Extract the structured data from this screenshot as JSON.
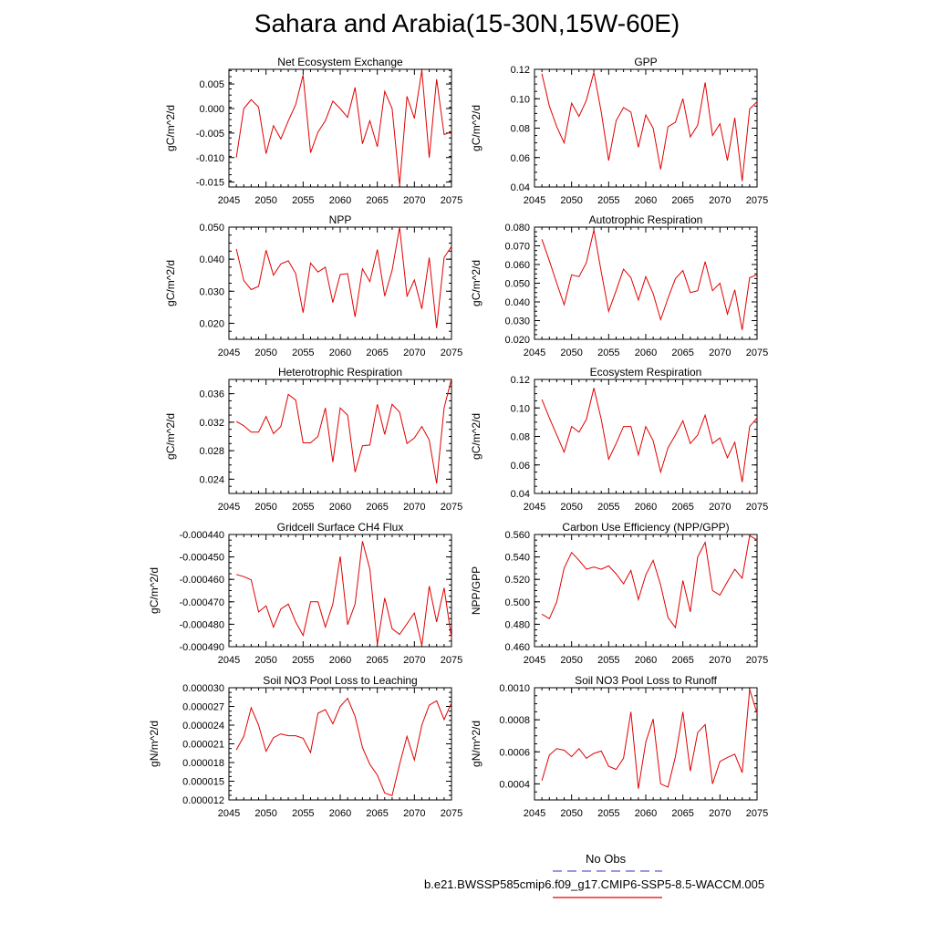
{
  "title": "Sahara and Arabia(15-30N,15W-60E)",
  "legend": [
    {
      "label": "No Obs",
      "color": "#5a5ad6",
      "dash": true
    },
    {
      "label": "b.e21.BWSSP585cmip6.f09_g17.CMIP6-SSP5-8.5-WACCM.005",
      "color": "#e00000",
      "dash": false
    }
  ],
  "chart_data": [
    {
      "type": "line",
      "title": "Net Ecosystem Exchange",
      "ylabel": "gC/m^2/d",
      "xlim": [
        2045,
        2075
      ],
      "ylim": [
        -0.016,
        0.008
      ],
      "xticks": [
        2045,
        2050,
        2055,
        2060,
        2065,
        2070,
        2075
      ],
      "yticks": [
        -0.015,
        -0.01,
        -0.005,
        0.0,
        0.005
      ],
      "ydec": 3,
      "x": [
        2046,
        2047,
        2048,
        2049,
        2050,
        2051,
        2052,
        2053,
        2054,
        2055,
        2056,
        2057,
        2058,
        2059,
        2060,
        2061,
        2062,
        2063,
        2064,
        2065,
        2066,
        2067,
        2068,
        2069,
        2070,
        2071,
        2072,
        2073,
        2074,
        2075
      ],
      "series": [
        {
          "color": "#e00000",
          "values": [
            -0.01,
            0.0,
            0.0018,
            0.0003,
            -0.0092,
            -0.0035,
            -0.0062,
            -0.0025,
            0.0008,
            0.0068,
            -0.009,
            -0.0048,
            -0.0025,
            0.0015,
            0.0,
            -0.0018,
            0.0043,
            -0.0072,
            -0.0025,
            -0.0078,
            0.0035,
            0.0,
            -0.0157,
            0.0025,
            -0.002,
            0.0078,
            -0.01,
            0.006,
            -0.0053,
            -0.0048
          ]
        }
      ]
    },
    {
      "type": "line",
      "title": "GPP",
      "ylabel": "gC/m^2/d",
      "xlim": [
        2045,
        2075
      ],
      "ylim": [
        0.04,
        0.12
      ],
      "xticks": [
        2045,
        2050,
        2055,
        2060,
        2065,
        2070,
        2075
      ],
      "yticks": [
        0.04,
        0.06,
        0.08,
        0.1,
        0.12
      ],
      "ydec": 2,
      "x": [
        2046,
        2047,
        2048,
        2049,
        2050,
        2051,
        2052,
        2053,
        2054,
        2055,
        2056,
        2057,
        2058,
        2059,
        2060,
        2061,
        2062,
        2063,
        2064,
        2065,
        2066,
        2067,
        2068,
        2069,
        2070,
        2071,
        2072,
        2073,
        2074,
        2075
      ],
      "series": [
        {
          "color": "#e00000",
          "values": [
            0.117,
            0.095,
            0.081,
            0.07,
            0.097,
            0.088,
            0.099,
            0.118,
            0.091,
            0.058,
            0.085,
            0.094,
            0.091,
            0.067,
            0.089,
            0.08,
            0.052,
            0.081,
            0.084,
            0.1,
            0.074,
            0.082,
            0.111,
            0.075,
            0.083,
            0.058,
            0.087,
            0.044,
            0.093,
            0.098
          ]
        }
      ]
    },
    {
      "type": "line",
      "title": "NPP",
      "ylabel": "gC/m^2/d",
      "xlim": [
        2045,
        2075
      ],
      "ylim": [
        0.015,
        0.05
      ],
      "xticks": [
        2045,
        2050,
        2055,
        2060,
        2065,
        2070,
        2075
      ],
      "yticks": [
        0.02,
        0.03,
        0.04,
        0.05
      ],
      "ydec": 3,
      "x": [
        2046,
        2047,
        2048,
        2049,
        2050,
        2051,
        2052,
        2053,
        2054,
        2055,
        2056,
        2057,
        2058,
        2059,
        2060,
        2061,
        2062,
        2063,
        2064,
        2065,
        2066,
        2067,
        2068,
        2069,
        2070,
        2071,
        2072,
        2073,
        2074,
        2075
      ],
      "series": [
        {
          "color": "#e00000",
          "values": [
            0.0432,
            0.0333,
            0.0305,
            0.0315,
            0.0428,
            0.035,
            0.0385,
            0.0395,
            0.0355,
            0.0233,
            0.0388,
            0.036,
            0.0375,
            0.0265,
            0.0352,
            0.0355,
            0.022,
            0.037,
            0.033,
            0.043,
            0.0285,
            0.0365,
            0.05,
            0.0285,
            0.0335,
            0.0245,
            0.0405,
            0.0185,
            0.0405,
            0.044
          ]
        }
      ]
    },
    {
      "type": "line",
      "title": "Autotrophic Respiration",
      "ylabel": "gC/m^2/d",
      "xlim": [
        2045,
        2075
      ],
      "ylim": [
        0.02,
        0.08
      ],
      "xticks": [
        2045,
        2050,
        2055,
        2060,
        2065,
        2070,
        2075
      ],
      "yticks": [
        0.02,
        0.03,
        0.04,
        0.05,
        0.06,
        0.07,
        0.08
      ],
      "ydec": 3,
      "x": [
        2046,
        2047,
        2048,
        2049,
        2050,
        2051,
        2052,
        2053,
        2054,
        2055,
        2056,
        2057,
        2058,
        2059,
        2060,
        2061,
        2062,
        2063,
        2064,
        2065,
        2066,
        2067,
        2068,
        2069,
        2070,
        2071,
        2072,
        2073,
        2074,
        2075
      ],
      "series": [
        {
          "color": "#e00000",
          "values": [
            0.0735,
            0.062,
            0.05,
            0.0385,
            0.0545,
            0.0535,
            0.061,
            0.0785,
            0.056,
            0.035,
            0.046,
            0.0575,
            0.053,
            0.041,
            0.0535,
            0.0445,
            0.0305,
            0.042,
            0.0525,
            0.0568,
            0.045,
            0.046,
            0.0615,
            0.046,
            0.05,
            0.0335,
            0.0465,
            0.025,
            0.053,
            0.0545
          ]
        }
      ]
    },
    {
      "type": "line",
      "title": "Heterotrophic Respiration",
      "ylabel": "gC/m^2/d",
      "xlim": [
        2045,
        2075
      ],
      "ylim": [
        0.022,
        0.038
      ],
      "xticks": [
        2045,
        2050,
        2055,
        2060,
        2065,
        2070,
        2075
      ],
      "yticks": [
        0.024,
        0.028,
        0.032,
        0.036
      ],
      "ydec": 3,
      "x": [
        2046,
        2047,
        2048,
        2049,
        2050,
        2051,
        2052,
        2053,
        2054,
        2055,
        2056,
        2057,
        2058,
        2059,
        2060,
        2061,
        2062,
        2063,
        2064,
        2065,
        2066,
        2067,
        2068,
        2069,
        2070,
        2071,
        2072,
        2073,
        2074,
        2075
      ],
      "series": [
        {
          "color": "#e00000",
          "values": [
            0.0321,
            0.0315,
            0.0306,
            0.0306,
            0.0328,
            0.0304,
            0.0314,
            0.0359,
            0.0351,
            0.0291,
            0.0291,
            0.03,
            0.034,
            0.0264,
            0.034,
            0.033,
            0.025,
            0.0287,
            0.0288,
            0.0345,
            0.0303,
            0.0345,
            0.0334,
            0.029,
            0.0298,
            0.0314,
            0.0295,
            0.0234,
            0.034,
            0.0381
          ]
        }
      ]
    },
    {
      "type": "line",
      "title": "Ecosystem Respiration",
      "ylabel": "gC/m^2/d",
      "xlim": [
        2045,
        2075
      ],
      "ylim": [
        0.04,
        0.12
      ],
      "xticks": [
        2045,
        2050,
        2055,
        2060,
        2065,
        2070,
        2075
      ],
      "yticks": [
        0.04,
        0.06,
        0.08,
        0.1,
        0.12
      ],
      "ydec": 2,
      "x": [
        2046,
        2047,
        2048,
        2049,
        2050,
        2051,
        2052,
        2053,
        2054,
        2055,
        2056,
        2057,
        2058,
        2059,
        2060,
        2061,
        2062,
        2063,
        2064,
        2065,
        2066,
        2067,
        2068,
        2069,
        2070,
        2071,
        2072,
        2073,
        2074,
        2075
      ],
      "series": [
        {
          "color": "#e00000",
          "values": [
            0.106,
            0.093,
            0.081,
            0.069,
            0.087,
            0.083,
            0.092,
            0.114,
            0.092,
            0.064,
            0.075,
            0.087,
            0.087,
            0.067,
            0.087,
            0.077,
            0.055,
            0.072,
            0.081,
            0.091,
            0.075,
            0.081,
            0.095,
            0.075,
            0.079,
            0.065,
            0.076,
            0.048,
            0.087,
            0.093
          ]
        }
      ]
    },
    {
      "type": "line",
      "title": "Gridcell Surface CH4 Flux",
      "ylabel": "gC/m^2/d",
      "xlim": [
        2045,
        2075
      ],
      "ylim": [
        -0.00049,
        -0.00044
      ],
      "xticks": [
        2045,
        2050,
        2055,
        2060,
        2065,
        2070,
        2075
      ],
      "yticks": [
        -0.00049,
        -0.00048,
        -0.00047,
        -0.00046,
        -0.00045,
        -0.00044
      ],
      "ydec": 6,
      "x": [
        2046,
        2047,
        2048,
        2049,
        2050,
        2051,
        2052,
        2053,
        2054,
        2055,
        2056,
        2057,
        2058,
        2059,
        2060,
        2061,
        2062,
        2063,
        2064,
        2065,
        2066,
        2067,
        2068,
        2069,
        2070,
        2071,
        2072,
        2073,
        2074,
        2075
      ],
      "series": [
        {
          "color": "#e00000",
          "values": [
            -0.0004578,
            -0.0004588,
            -0.0004602,
            -0.0004745,
            -0.0004718,
            -0.0004813,
            -0.0004732,
            -0.000471,
            -0.000479,
            -0.000485,
            -0.00047,
            -0.00047,
            -0.0004812,
            -0.000471,
            -0.0004498,
            -0.0004802,
            -0.000471,
            -0.000443,
            -0.0004555,
            -0.000489,
            -0.0004683,
            -0.000482,
            -0.0004845,
            -0.0004798,
            -0.000475,
            -0.0004895,
            -0.000463,
            -0.000479,
            -0.0004638,
            -0.0004862
          ]
        }
      ]
    },
    {
      "type": "line",
      "title": "Carbon Use Efficiency (NPP/GPP)",
      "ylabel": "NPP/GPP",
      "xlim": [
        2045,
        2075
      ],
      "ylim": [
        0.46,
        0.56
      ],
      "xticks": [
        2045,
        2050,
        2055,
        2060,
        2065,
        2070,
        2075
      ],
      "yticks": [
        0.46,
        0.48,
        0.5,
        0.52,
        0.54,
        0.56
      ],
      "ydec": 3,
      "x": [
        2046,
        2047,
        2048,
        2049,
        2050,
        2051,
        2052,
        2053,
        2054,
        2055,
        2056,
        2057,
        2058,
        2059,
        2060,
        2061,
        2062,
        2063,
        2064,
        2065,
        2066,
        2067,
        2068,
        2069,
        2070,
        2071,
        2072,
        2073,
        2074,
        2075
      ],
      "series": [
        {
          "color": "#e00000",
          "values": [
            0.489,
            0.485,
            0.5,
            0.53,
            0.544,
            0.537,
            0.529,
            0.531,
            0.529,
            0.532,
            0.525,
            0.516,
            0.528,
            0.502,
            0.524,
            0.537,
            0.515,
            0.486,
            0.477,
            0.519,
            0.491,
            0.54,
            0.553,
            0.51,
            0.506,
            0.518,
            0.529,
            0.521,
            0.559,
            0.555
          ]
        }
      ]
    },
    {
      "type": "line",
      "title": "Soil NO3 Pool Loss to Leaching",
      "ylabel": "gN/m^2/d",
      "xlim": [
        2045,
        2075
      ],
      "ylim": [
        1.2e-05,
        3e-05
      ],
      "xticks": [
        2045,
        2050,
        2055,
        2060,
        2065,
        2070,
        2075
      ],
      "yticks": [
        1.2e-05,
        1.5e-05,
        1.8e-05,
        2.1e-05,
        2.4e-05,
        2.7e-05,
        3e-05
      ],
      "ydec": 6,
      "x": [
        2046,
        2047,
        2048,
        2049,
        2050,
        2051,
        2052,
        2053,
        2054,
        2055,
        2056,
        2057,
        2058,
        2059,
        2060,
        2061,
        2062,
        2063,
        2064,
        2065,
        2066,
        2067,
        2068,
        2069,
        2070,
        2071,
        2072,
        2073,
        2074,
        2075
      ],
      "series": [
        {
          "color": "#e00000",
          "values": [
            2e-05,
            2.22e-05,
            2.68e-05,
            2.4e-05,
            1.98e-05,
            2.2e-05,
            2.26e-05,
            2.23e-05,
            2.23e-05,
            2.19e-05,
            1.96e-05,
            2.59e-05,
            2.65e-05,
            2.42e-05,
            2.7e-05,
            2.83e-05,
            2.54e-05,
            2.04e-05,
            1.77e-05,
            1.6e-05,
            1.31e-05,
            1.27e-05,
            1.77e-05,
            2.22e-05,
            1.84e-05,
            2.4e-05,
            2.72e-05,
            2.79e-05,
            2.49e-05,
            2.76e-05
          ]
        }
      ]
    },
    {
      "type": "line",
      "title": "Soil NO3 Pool Loss to Runoff",
      "ylabel": "gN/m^2/d",
      "xlim": [
        2045,
        2075
      ],
      "ylim": [
        0.0003,
        0.001
      ],
      "xticks": [
        2045,
        2050,
        2055,
        2060,
        2065,
        2070,
        2075
      ],
      "yticks": [
        0.0004,
        0.0006,
        0.0008,
        0.001
      ],
      "ydec": 4,
      "x": [
        2046,
        2047,
        2048,
        2049,
        2050,
        2051,
        2052,
        2053,
        2054,
        2055,
        2056,
        2057,
        2058,
        2059,
        2060,
        2061,
        2062,
        2063,
        2064,
        2065,
        2066,
        2067,
        2068,
        2069,
        2070,
        2071,
        2072,
        2073,
        2074,
        2075
      ],
      "series": [
        {
          "color": "#e00000",
          "values": [
            0.00042,
            0.00058,
            0.00062,
            0.00061,
            0.00057,
            0.00062,
            0.00056,
            0.00059,
            0.000605,
            0.00051,
            0.00049,
            0.00056,
            0.00085,
            0.00037,
            0.00066,
            0.000805,
            0.0004,
            0.00038,
            0.00057,
            0.00085,
            0.00048,
            0.00072,
            0.00077,
            0.0004,
            0.00054,
            0.000565,
            0.000585,
            0.00047,
            0.00099,
            0.00084
          ]
        }
      ]
    }
  ]
}
